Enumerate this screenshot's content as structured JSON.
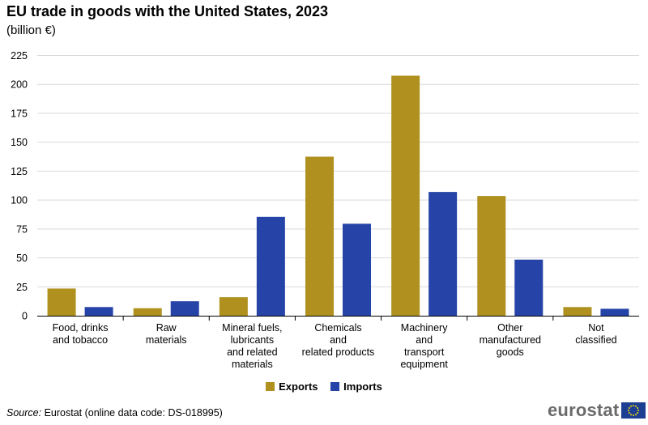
{
  "header": {
    "title": "EU trade in goods with the United States, 2023",
    "subtitle": "(billion €)"
  },
  "chart_data": {
    "type": "bar",
    "categories": [
      [
        "Food, drinks",
        "and tobacco"
      ],
      [
        "Raw",
        "materials"
      ],
      [
        "Mineral fuels,",
        "lubricants",
        "and related",
        "materials"
      ],
      [
        "Chemicals",
        "and",
        "related products"
      ],
      [
        "Machinery",
        "and",
        "transport",
        "equipment"
      ],
      [
        "Other",
        "manufactured",
        "goods"
      ],
      [
        "Not",
        "classified"
      ]
    ],
    "series": [
      {
        "name": "Exports",
        "color": "#b09120",
        "values": [
          23.5,
          6.5,
          16,
          137.5,
          207.5,
          103.5,
          7.5
        ]
      },
      {
        "name": "Imports",
        "color": "#2644a7",
        "values": [
          7.5,
          12.5,
          85.5,
          79.5,
          107,
          48.5,
          6
        ]
      }
    ],
    "ylim": [
      0,
      225
    ],
    "yticks": [
      0,
      25,
      50,
      75,
      100,
      125,
      150,
      175,
      200,
      225
    ],
    "grid": true,
    "legend_position": "bottom"
  },
  "footer": {
    "source_label": "Source:",
    "source_text": " Eurostat (online data code: DS-018995)",
    "logo_text": "eurostat"
  }
}
